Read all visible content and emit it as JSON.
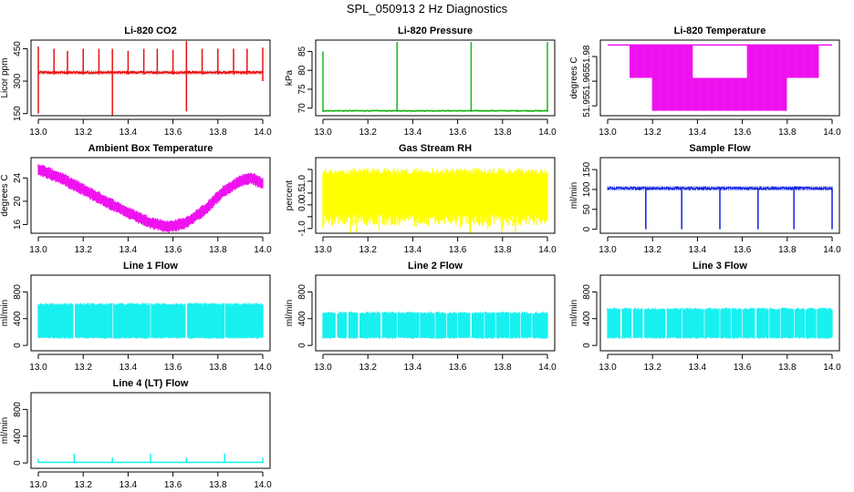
{
  "page_title": "SPL_050913  2 Hz Diagnostics",
  "chart_data": [
    {
      "id": "co2",
      "type": "line",
      "title": "Li-820 CO2",
      "ylabel": "Licor ppm",
      "color": "#e81010",
      "xlim": [
        13.0,
        14.0
      ],
      "ylim": [
        140,
        490
      ],
      "yticks": [
        150,
        300,
        450
      ],
      "ytick_labels": [
        "150",
        "300",
        "450"
      ],
      "xticks": [
        13.0,
        13.2,
        13.4,
        13.6,
        13.8,
        14.0
      ],
      "xtick_labels": [
        "13.0",
        "13.2",
        "13.4",
        "13.6",
        "13.8",
        "14.0"
      ],
      "baseline": 340,
      "noise": 8,
      "spikes": [
        {
          "x": 13.0,
          "ymin": 150,
          "ymax": 460
        },
        {
          "x": 13.07,
          "ymin": 330,
          "ymax": 450
        },
        {
          "x": 13.13,
          "ymin": 330,
          "ymax": 440
        },
        {
          "x": 13.2,
          "ymin": 330,
          "ymax": 450
        },
        {
          "x": 13.27,
          "ymin": 330,
          "ymax": 450
        },
        {
          "x": 13.33,
          "ymin": 140,
          "ymax": 450
        },
        {
          "x": 13.4,
          "ymin": 330,
          "ymax": 440
        },
        {
          "x": 13.47,
          "ymin": 330,
          "ymax": 450
        },
        {
          "x": 13.53,
          "ymin": 330,
          "ymax": 450
        },
        {
          "x": 13.6,
          "ymin": 330,
          "ymax": 445
        },
        {
          "x": 13.66,
          "ymin": 160,
          "ymax": 485
        },
        {
          "x": 13.73,
          "ymin": 330,
          "ymax": 450
        },
        {
          "x": 13.8,
          "ymin": 330,
          "ymax": 450
        },
        {
          "x": 13.87,
          "ymin": 330,
          "ymax": 450
        },
        {
          "x": 13.93,
          "ymin": 330,
          "ymax": 450
        },
        {
          "x": 14.0,
          "ymin": 300,
          "ymax": 455
        }
      ]
    },
    {
      "id": "pressure",
      "type": "line",
      "title": "Li-820 Pressure",
      "ylabel": "kPa",
      "color": "#18b818",
      "xlim": [
        13.0,
        14.0
      ],
      "ylim": [
        68,
        88
      ],
      "yticks": [
        70,
        75,
        80,
        85
      ],
      "ytick_labels": [
        "70",
        "75",
        "80",
        "85"
      ],
      "xticks": [
        13.0,
        13.2,
        13.4,
        13.6,
        13.8,
        14.0
      ],
      "xtick_labels": [
        "13.0",
        "13.2",
        "13.4",
        "13.6",
        "13.8",
        "14.0"
      ],
      "baseline": 69.3,
      "noise": 0.2,
      "spikes": [
        {
          "x": 13.0,
          "ymin": 69,
          "ymax": 85
        },
        {
          "x": 13.33,
          "ymin": 69,
          "ymax": 87.5
        },
        {
          "x": 13.66,
          "ymin": 69,
          "ymax": 87.5
        },
        {
          "x": 14.0,
          "ymin": 69,
          "ymax": 87.5
        }
      ]
    },
    {
      "id": "licor-temp",
      "type": "line",
      "title": "Li-820 Temperature",
      "ylabel": "degrees C",
      "color": "#ee10ee",
      "xlim": [
        13.0,
        14.0
      ],
      "ylim": [
        51.944,
        51.99
      ],
      "yticks": [
        51.95,
        51.965,
        51.98
      ],
      "ytick_labels": [
        "51.95",
        "51.965",
        "51.98"
      ],
      "xticks": [
        13.0,
        13.2,
        13.4,
        13.6,
        13.8,
        14.0
      ],
      "xtick_labels": [
        "13.0",
        "13.2",
        "13.4",
        "13.6",
        "13.8",
        "14.0"
      ],
      "levels": [
        51.987,
        51.967,
        51.947
      ]
    },
    {
      "id": "box-temp",
      "type": "line",
      "title": "Ambient Box Temperature",
      "ylabel": "degrees C",
      "color": "#ee10ee",
      "xlim": [
        13.0,
        14.0
      ],
      "ylim": [
        14.5,
        27.5
      ],
      "yticks": [
        16,
        20,
        24
      ],
      "ytick_labels": [
        "16",
        "20",
        "24"
      ],
      "xticks": [
        13.0,
        13.2,
        13.4,
        13.6,
        13.8,
        14.0
      ],
      "xtick_labels": [
        "13.0",
        "13.2",
        "13.4",
        "13.6",
        "13.8",
        "14.0"
      ],
      "curve": [
        [
          13.0,
          25.5
        ],
        [
          13.1,
          24.0
        ],
        [
          13.2,
          22.0
        ],
        [
          13.3,
          20.0
        ],
        [
          13.4,
          18.0
        ],
        [
          13.5,
          16.3
        ],
        [
          13.58,
          15.6
        ],
        [
          13.66,
          16.3
        ],
        [
          13.74,
          18.5
        ],
        [
          13.82,
          21.5
        ],
        [
          13.9,
          23.5
        ],
        [
          13.95,
          24.0
        ],
        [
          14.0,
          23.0
        ]
      ],
      "band": 1.4
    },
    {
      "id": "rh",
      "type": "line",
      "title": "Gas Stream RH",
      "ylabel": "percent",
      "color": "#ffff00",
      "xlim": [
        13.0,
        14.0
      ],
      "ylim": [
        -1.2,
        2.0
      ],
      "yticks": [
        -1.0,
        -0.5,
        0.0,
        0.5,
        1.0,
        1.5
      ],
      "ytick_labels": [
        "-1.0",
        "",
        "0.0",
        "0.5",
        "1.0",
        ""
      ],
      "xticks": [
        13.0,
        13.2,
        13.4,
        13.6,
        13.8,
        14.0
      ],
      "xtick_labels": [
        "13.0",
        "13.2",
        "13.4",
        "13.6",
        "13.8",
        "14.0"
      ],
      "band_low": -0.4,
      "band_high": 1.55
    },
    {
      "id": "sample-flow",
      "type": "line",
      "title": "Sample Flow",
      "ylabel": "ml/min",
      "color": "#1020e0",
      "xlim": [
        13.0,
        14.0
      ],
      "ylim": [
        -10,
        180
      ],
      "yticks": [
        0,
        50,
        100,
        150
      ],
      "ytick_labels": [
        "0",
        "50",
        "100",
        "150"
      ],
      "xticks": [
        13.0,
        13.2,
        13.4,
        13.6,
        13.8,
        14.0
      ],
      "xtick_labels": [
        "13.0",
        "13.2",
        "13.4",
        "13.6",
        "13.8",
        "14.0"
      ],
      "baseline": 103,
      "noise": 5,
      "dips": [
        13.17,
        13.33,
        13.5,
        13.67,
        13.83,
        14.0
      ],
      "dip_min": 0
    },
    {
      "id": "line1",
      "type": "line",
      "title": "Line 1 Flow",
      "ylabel": "ml/min",
      "color": "#18f0f0",
      "xlim": [
        13.0,
        14.0
      ],
      "ylim": [
        -80,
        1050
      ],
      "yticks": [
        0,
        400,
        800
      ],
      "ytick_labels": [
        "0",
        "400",
        "800"
      ],
      "xticks": [
        13.0,
        13.2,
        13.4,
        13.6,
        13.8,
        14.0
      ],
      "xtick_labels": [
        "13.0",
        "13.2",
        "13.4",
        "13.6",
        "13.8",
        "14.0"
      ],
      "band_low": 100,
      "band_high": 620,
      "gaps": [
        13.16,
        13.33,
        13.5,
        13.66,
        13.83
      ]
    },
    {
      "id": "line2",
      "type": "line",
      "title": "Line 2 Flow",
      "ylabel": "ml/min",
      "color": "#18f0f0",
      "xlim": [
        13.0,
        14.0
      ],
      "ylim": [
        -80,
        1050
      ],
      "yticks": [
        0,
        400,
        800
      ],
      "ytick_labels": [
        "0",
        "400",
        "800"
      ],
      "xticks": [
        13.0,
        13.2,
        13.4,
        13.6,
        13.8,
        14.0
      ],
      "xtick_labels": [
        "13.0",
        "13.2",
        "13.4",
        "13.6",
        "13.8",
        "14.0"
      ],
      "band_low": 100,
      "band_high": 490,
      "gaps": [
        13.06,
        13.11,
        13.16,
        13.26,
        13.33,
        13.43,
        13.5,
        13.55,
        13.6,
        13.66,
        13.72,
        13.77,
        13.83,
        13.88,
        13.93
      ]
    },
    {
      "id": "line3",
      "type": "line",
      "title": "Line 3 Flow",
      "ylabel": "ml/min",
      "color": "#18f0f0",
      "xlim": [
        13.0,
        14.0
      ],
      "ylim": [
        -80,
        1050
      ],
      "yticks": [
        0,
        400,
        800
      ],
      "ytick_labels": [
        "0",
        "400",
        "800"
      ],
      "xticks": [
        13.0,
        13.2,
        13.4,
        13.6,
        13.8,
        14.0
      ],
      "xtick_labels": [
        "13.0",
        "13.2",
        "13.4",
        "13.6",
        "13.8",
        "14.0"
      ],
      "band_low": 100,
      "band_high": 550,
      "gaps": [
        13.06,
        13.11,
        13.16,
        13.26,
        13.33,
        13.43,
        13.5,
        13.55,
        13.6,
        13.66,
        13.72,
        13.77,
        13.83,
        13.88,
        13.93
      ]
    },
    {
      "id": "line4",
      "type": "line",
      "title": "Line 4 (LT) Flow",
      "ylabel": "ml/min",
      "color": "#18f0f0",
      "xlim": [
        13.0,
        14.0
      ],
      "ylim": [
        -80,
        1050
      ],
      "yticks": [
        0,
        400,
        800
      ],
      "ytick_labels": [
        "0",
        "400",
        "800"
      ],
      "xticks": [
        13.0,
        13.2,
        13.4,
        13.6,
        13.8,
        14.0
      ],
      "xtick_labels": [
        "13.0",
        "13.2",
        "13.4",
        "13.6",
        "13.8",
        "14.0"
      ],
      "baseline": 10,
      "spikes": [
        {
          "x": 13.0,
          "ymin": 0,
          "ymax": 60
        },
        {
          "x": 13.16,
          "ymin": 0,
          "ymax": 140
        },
        {
          "x": 13.33,
          "ymin": 0,
          "ymax": 80
        },
        {
          "x": 13.5,
          "ymin": 0,
          "ymax": 140
        },
        {
          "x": 13.66,
          "ymin": 0,
          "ymax": 80
        },
        {
          "x": 13.83,
          "ymin": 0,
          "ymax": 140
        },
        {
          "x": 14.0,
          "ymin": 0,
          "ymax": 80
        }
      ]
    }
  ]
}
